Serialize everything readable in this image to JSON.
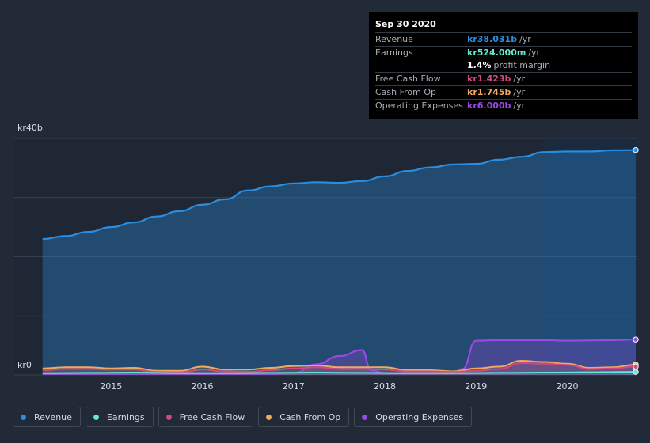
{
  "tooltip": {
    "date": "Sep 30 2020",
    "rows": [
      {
        "label": "Revenue",
        "value": "kr38.031b",
        "unit": "/yr",
        "color": "#2b8de0"
      },
      {
        "label": "Earnings",
        "value": "kr524.000m",
        "unit": "/yr",
        "color": "#65e8d2"
      },
      {
        "label": "",
        "value": "1.4%",
        "unit": "profit margin",
        "color": "#ffffff"
      },
      {
        "label": "Free Cash Flow",
        "value": "kr1.423b",
        "unit": "/yr",
        "color": "#d4497b"
      },
      {
        "label": "Cash From Op",
        "value": "kr1.745b",
        "unit": "/yr",
        "color": "#f0a961"
      },
      {
        "label": "Operating Expenses",
        "value": "kr6.000b",
        "unit": "/yr",
        "color": "#9b47e6"
      }
    ]
  },
  "y_axis": {
    "top_label": "kr40b",
    "bottom_label": "kr0"
  },
  "legend": [
    {
      "label": "Revenue",
      "color": "#2b8de0"
    },
    {
      "label": "Earnings",
      "color": "#65e8d2"
    },
    {
      "label": "Free Cash Flow",
      "color": "#d4497b"
    },
    {
      "label": "Cash From Op",
      "color": "#f0a961"
    },
    {
      "label": "Operating Expenses",
      "color": "#9b47e6"
    }
  ],
  "chart_data": {
    "type": "area",
    "ylim": [
      0,
      40
    ],
    "xlim": [
      2014.2,
      2020.75
    ],
    "x_ticks": [
      "2015",
      "2016",
      "2017",
      "2018",
      "2019",
      "2020"
    ],
    "x_tick_values": [
      2015,
      2016,
      2017,
      2018,
      2019,
      2020
    ],
    "highlight_from": 2019.75,
    "grid": true,
    "series": [
      {
        "name": "Revenue",
        "color": "#2b8de0",
        "x": [
          2014.25,
          2014.5,
          2014.75,
          2015.0,
          2015.25,
          2015.5,
          2015.75,
          2016.0,
          2016.25,
          2016.5,
          2016.75,
          2017.0,
          2017.25,
          2017.5,
          2017.75,
          2018.0,
          2018.25,
          2018.5,
          2018.75,
          2019.0,
          2019.25,
          2019.5,
          2019.75,
          2020.0,
          2020.25,
          2020.5,
          2020.75
        ],
        "values": [
          23.0,
          23.5,
          24.2,
          25.0,
          25.8,
          26.8,
          27.7,
          28.8,
          29.7,
          31.2,
          31.9,
          32.4,
          32.6,
          32.5,
          32.8,
          33.6,
          34.5,
          35.1,
          35.6,
          35.7,
          36.4,
          36.9,
          37.7,
          37.8,
          37.8,
          38.0,
          38.031
        ]
      },
      {
        "name": "Earnings",
        "color": "#65e8d2",
        "x": [
          2014.25,
          2014.75,
          2015.25,
          2015.75,
          2016.25,
          2016.75,
          2017.25,
          2017.75,
          2018.25,
          2018.75,
          2019.25,
          2019.75,
          2020.25,
          2020.75
        ],
        "values": [
          0.3,
          0.35,
          0.4,
          0.3,
          0.3,
          0.35,
          0.4,
          0.35,
          0.3,
          0.3,
          0.35,
          0.4,
          0.45,
          0.524
        ]
      },
      {
        "name": "Free Cash Flow",
        "color": "#d4497b",
        "x": [
          2014.25,
          2014.5,
          2014.75,
          2015.0,
          2015.25,
          2015.5,
          2015.75,
          2016.0,
          2016.25,
          2016.5,
          2016.75,
          2017.0,
          2017.25,
          2017.5,
          2017.75,
          2018.0,
          2018.25,
          2018.5,
          2018.75,
          2019.0,
          2019.25,
          2019.5,
          2019.75,
          2020.0,
          2020.25,
          2020.5,
          2020.75
        ],
        "values": [
          0.8,
          1.0,
          1.0,
          0.9,
          0.9,
          0.5,
          0.4,
          0.9,
          0.6,
          0.5,
          0.8,
          1.1,
          1.3,
          1.0,
          1.0,
          0.9,
          0.6,
          0.6,
          0.5,
          0.7,
          1.0,
          2.0,
          1.9,
          1.7,
          1.0,
          1.1,
          1.423
        ]
      },
      {
        "name": "Cash From Op",
        "color": "#f0a961",
        "x": [
          2014.25,
          2014.5,
          2014.75,
          2015.0,
          2015.25,
          2015.5,
          2015.75,
          2016.0,
          2016.25,
          2016.5,
          2016.75,
          2017.0,
          2017.25,
          2017.5,
          2017.75,
          2018.0,
          2018.25,
          2018.5,
          2018.75,
          2019.0,
          2019.25,
          2019.5,
          2019.75,
          2020.0,
          2020.25,
          2020.5,
          2020.75
        ],
        "values": [
          1.1,
          1.3,
          1.3,
          1.1,
          1.2,
          0.7,
          0.7,
          1.4,
          0.9,
          0.9,
          1.2,
          1.5,
          1.6,
          1.3,
          1.3,
          1.3,
          0.8,
          0.8,
          0.6,
          1.1,
          1.4,
          2.4,
          2.2,
          1.9,
          1.2,
          1.3,
          1.745
        ]
      },
      {
        "name": "Operating Expenses",
        "color": "#9b47e6",
        "x": [
          2014.25,
          2014.5,
          2014.75,
          2015.0,
          2015.25,
          2015.5,
          2015.75,
          2016.0,
          2016.25,
          2016.5,
          2016.75,
          2017.0,
          2017.25,
          2017.5,
          2017.75,
          2017.85,
          2018.0,
          2018.25,
          2018.5,
          2018.75,
          2018.85,
          2019.0,
          2019.25,
          2019.5,
          2019.75,
          2020.0,
          2020.25,
          2020.5,
          2020.75
        ],
        "values": [
          0.2,
          0.2,
          0.2,
          0.2,
          0.2,
          0.2,
          0.2,
          0.2,
          0.2,
          0.2,
          0.2,
          0.3,
          1.8,
          3.2,
          4.2,
          0.8,
          0.3,
          0.3,
          0.3,
          0.3,
          1.0,
          5.8,
          5.9,
          5.9,
          5.9,
          5.8,
          5.85,
          5.9,
          6.0
        ]
      }
    ]
  }
}
